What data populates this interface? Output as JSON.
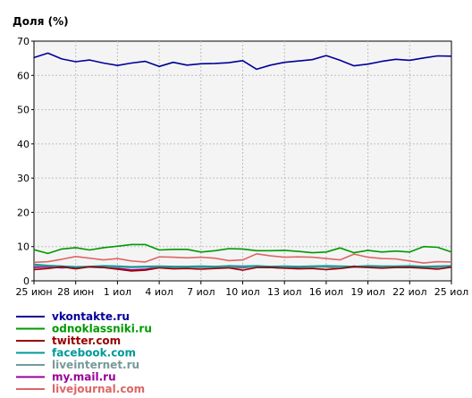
{
  "chart_data": {
    "type": "line",
    "ylabel": "Доля (%)",
    "xlabel": "",
    "ylim": [
      0,
      70
    ],
    "yticks": [
      0,
      10,
      20,
      30,
      40,
      50,
      60,
      70
    ],
    "x_labels": [
      "25 июн",
      "28 июн",
      "1 иол",
      "4 иол",
      "7 иол",
      "10 иол",
      "13 иол",
      "16 иол",
      "19 иол",
      "22 иол",
      "25 иол"
    ],
    "x_label_index": [
      0,
      3,
      6,
      9,
      12,
      15,
      18,
      21,
      24,
      27,
      30
    ],
    "grid": true,
    "legend_position": "bottom-left",
    "series": [
      {
        "name": "vkontakte.ru",
        "color": "#000099",
        "values": [
          65.2,
          66.5,
          64.8,
          64.0,
          64.5,
          63.6,
          62.9,
          63.6,
          64.1,
          62.6,
          63.8,
          63.0,
          63.4,
          63.5,
          63.7,
          64.3,
          61.8,
          63.0,
          63.8,
          64.2,
          64.6,
          65.8,
          64.4,
          62.8,
          63.3,
          64.1,
          64.7,
          64.4,
          65.1,
          65.7,
          65.6
        ]
      },
      {
        "name": "odnoklassniki.ru",
        "color": "#009900",
        "values": [
          9.1,
          8.0,
          9.3,
          9.7,
          9.0,
          9.7,
          10.1,
          10.6,
          10.6,
          9.0,
          9.2,
          9.2,
          8.4,
          8.8,
          9.4,
          9.3,
          8.8,
          8.8,
          8.9,
          8.6,
          8.2,
          8.4,
          9.6,
          8.2,
          8.9,
          8.4,
          8.7,
          8.4,
          10.0,
          9.8,
          8.4
        ]
      },
      {
        "name": "twitter.com",
        "color": "#990000",
        "values": [
          3.3,
          3.6,
          4.1,
          3.5,
          4.1,
          3.9,
          3.4,
          2.9,
          3.1,
          3.8,
          3.5,
          3.6,
          3.4,
          3.6,
          3.8,
          3.1,
          3.9,
          3.9,
          3.7,
          3.5,
          3.6,
          3.3,
          3.6,
          4.1,
          3.9,
          3.7,
          3.9,
          3.9,
          3.7,
          3.4,
          4.0
        ]
      },
      {
        "name": "facebook.com",
        "color": "#009999",
        "values": [
          4.8,
          4.5,
          4.3,
          4.1,
          4.2,
          4.4,
          4.3,
          4.1,
          4.2,
          4.3,
          4.2,
          4.2,
          4.3,
          4.2,
          4.4,
          4.3,
          4.4,
          4.2,
          4.3,
          4.2,
          4.3,
          4.4,
          4.3,
          4.2,
          4.4,
          4.3,
          4.3,
          4.4,
          4.2,
          4.3,
          4.4
        ]
      },
      {
        "name": "liveinternet.ru",
        "color": "#779999",
        "values": [
          4.4,
          4.3,
          4.2,
          4.1,
          4.0,
          4.1,
          4.0,
          3.9,
          4.0,
          4.1,
          4.0,
          4.0,
          3.9,
          4.0,
          4.1,
          4.0,
          4.0,
          3.9,
          4.0,
          4.1,
          4.0,
          4.0,
          3.9,
          4.0,
          4.1,
          4.0,
          4.0,
          3.9,
          4.0,
          4.0,
          4.1
        ]
      },
      {
        "name": "my.mail.ru",
        "color": "#990099",
        "values": [
          3.9,
          4.1,
          3.8,
          4.0,
          4.0,
          3.9,
          3.6,
          3.2,
          3.4,
          3.9,
          3.9,
          4.0,
          3.9,
          4.0,
          4.0,
          3.8,
          4.1,
          3.9,
          3.7,
          3.9,
          4.1,
          4.0,
          3.7,
          4.3,
          4.0,
          4.2,
          4.1,
          4.1,
          4.0,
          3.9,
          4.3
        ]
      },
      {
        "name": "livejournal.com",
        "color": "#dd6666",
        "values": [
          5.4,
          5.6,
          6.3,
          7.1,
          6.6,
          6.1,
          6.5,
          5.8,
          5.5,
          7.0,
          6.9,
          6.7,
          6.9,
          6.6,
          5.9,
          6.1,
          7.9,
          7.3,
          6.9,
          7.0,
          6.9,
          6.5,
          6.1,
          7.8,
          6.9,
          6.5,
          6.4,
          5.8,
          5.2,
          5.6,
          5.5
        ]
      }
    ]
  }
}
